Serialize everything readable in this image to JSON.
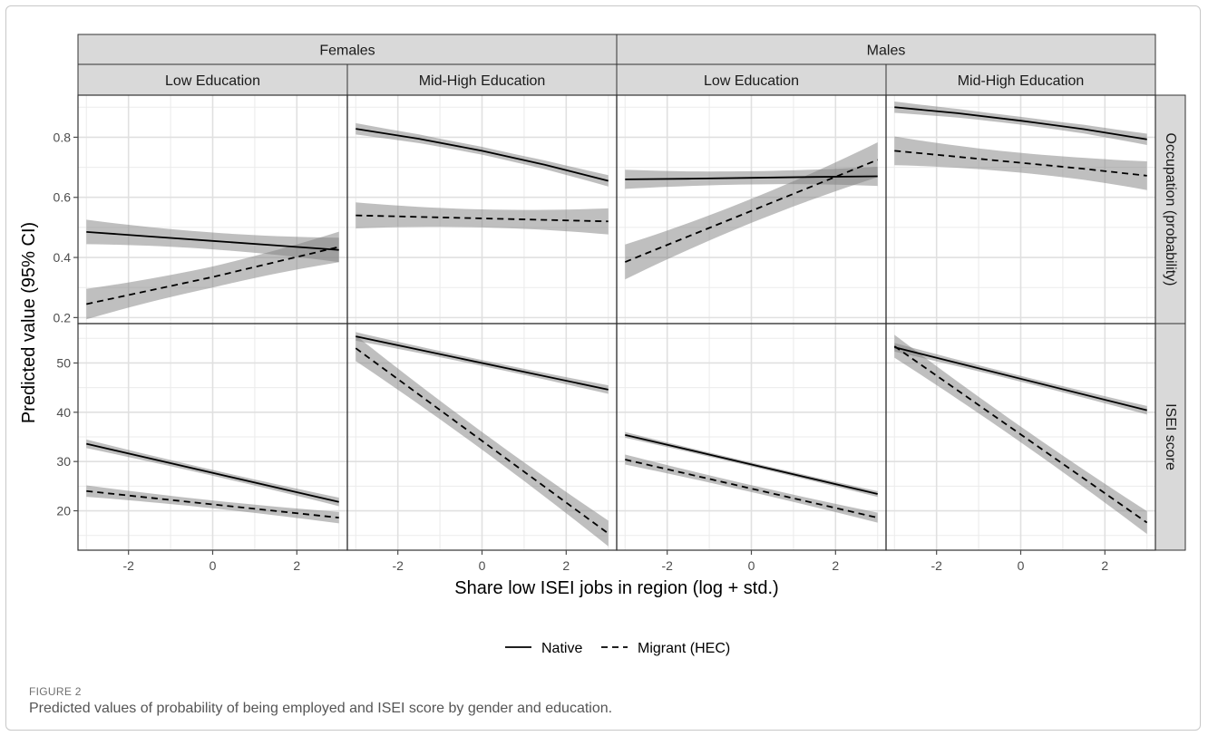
{
  "figure": {
    "label": "FIGURE 2",
    "caption": "Predicted values of probability of being employed and ISEI score by gender and education."
  },
  "chart_data": {
    "type": "line",
    "ylabel": "Predicted value (95% CI)",
    "xlabel": "Share low ISEI jobs in region (log + std.)",
    "xlim": [
      -3.2,
      3.2
    ],
    "x_ticks": [
      -2,
      0,
      2
    ],
    "x_tick_labels": [
      "-2",
      "0",
      "2"
    ],
    "legend": {
      "position": "bottom",
      "entries": [
        {
          "name": "Native",
          "linetype": "solid"
        },
        {
          "name": "Migrant (HEC)",
          "linetype": "dashed"
        }
      ]
    },
    "gender_strips": [
      "Females",
      "Males"
    ],
    "column_strips": [
      "Low Education",
      "Mid-High Education",
      "Low Education",
      "Mid-High Education"
    ],
    "rows": [
      {
        "strip": "Occupation (probability)",
        "ylim": [
          0.18,
          0.94
        ],
        "y_ticks": [
          0.2,
          0.4,
          0.6,
          0.8
        ],
        "y_tick_labels": [
          "0.2",
          "0.4",
          "0.6",
          "0.8"
        ]
      },
      {
        "strip": "ISEI score",
        "ylim": [
          12,
          58
        ],
        "y_ticks": [
          20,
          30,
          40,
          50
        ],
        "y_tick_labels": [
          "20",
          "30",
          "40",
          "50"
        ]
      }
    ],
    "grid": true,
    "panels": [
      {
        "row": 0,
        "col": 0,
        "series": [
          {
            "name": "Native",
            "x": [
              -3,
              -1.5,
              0,
              1.5,
              3
            ],
            "y": [
              0.485,
              0.47,
              0.455,
              0.44,
              0.425
            ],
            "ci": 0.028
          },
          {
            "name": "Migrant (HEC)",
            "x": [
              -3,
              -1.5,
              0,
              1.5,
              3
            ],
            "y": [
              0.245,
              0.29,
              0.335,
              0.385,
              0.435
            ],
            "ci": 0.035
          }
        ]
      },
      {
        "row": 0,
        "col": 1,
        "series": [
          {
            "name": "Native",
            "x": [
              -3,
              -1.5,
              0,
              1.5,
              3
            ],
            "y": [
              0.828,
              0.795,
              0.755,
              0.708,
              0.655
            ],
            "ci": 0.013
          },
          {
            "name": "Migrant (HEC)",
            "x": [
              -3,
              -1.5,
              0,
              1.5,
              3
            ],
            "y": [
              0.54,
              0.535,
              0.53,
              0.525,
              0.52
            ],
            "ci": 0.03
          }
        ]
      },
      {
        "row": 0,
        "col": 2,
        "series": [
          {
            "name": "Native",
            "x": [
              -3,
              -1.5,
              0,
              1.5,
              3
            ],
            "y": [
              0.66,
              0.662,
              0.665,
              0.668,
              0.67
            ],
            "ci": 0.022
          },
          {
            "name": "Migrant (HEC)",
            "x": [
              -3,
              -1.5,
              0,
              1.5,
              3
            ],
            "y": [
              0.385,
              0.47,
              0.555,
              0.64,
              0.725
            ],
            "ci": 0.04
          }
        ]
      },
      {
        "row": 0,
        "col": 3,
        "series": [
          {
            "name": "Native",
            "x": [
              -3,
              -1.5,
              0,
              1.5,
              3
            ],
            "y": [
              0.9,
              0.88,
              0.855,
              0.827,
              0.793
            ],
            "ci": 0.013
          },
          {
            "name": "Migrant (HEC)",
            "x": [
              -3,
              -1.5,
              0,
              1.5,
              3
            ],
            "y": [
              0.755,
              0.735,
              0.715,
              0.695,
              0.672
            ],
            "ci": 0.033
          }
        ]
      },
      {
        "row": 1,
        "col": 0,
        "series": [
          {
            "name": "Native",
            "x": [
              -3,
              3
            ],
            "y": [
              33.6,
              21.8
            ],
            "ci": 0.6
          },
          {
            "name": "Migrant (HEC)",
            "x": [
              -3,
              3
            ],
            "y": [
              24,
              18.6
            ],
            "ci": 0.8
          }
        ]
      },
      {
        "row": 1,
        "col": 1,
        "series": [
          {
            "name": "Native",
            "x": [
              -3,
              3
            ],
            "y": [
              55.4,
              44.6
            ],
            "ci": 0.6
          },
          {
            "name": "Migrant (HEC)",
            "x": [
              -3,
              3
            ],
            "y": [
              53,
              15.4
            ],
            "ci": 1.8
          }
        ]
      },
      {
        "row": 1,
        "col": 2,
        "series": [
          {
            "name": "Native",
            "x": [
              -3,
              3
            ],
            "y": [
              35.4,
              23.4
            ],
            "ci": 0.4
          },
          {
            "name": "Migrant (HEC)",
            "x": [
              -3,
              3
            ],
            "y": [
              30.4,
              18.6
            ],
            "ci": 0.7
          }
        ]
      },
      {
        "row": 1,
        "col": 3,
        "series": [
          {
            "name": "Native",
            "x": [
              -3,
              3
            ],
            "y": [
              53.2,
              40.4
            ],
            "ci": 0.6
          },
          {
            "name": "Migrant (HEC)",
            "x": [
              -3,
              3
            ],
            "y": [
              53.4,
              17.6
            ],
            "ci": 1.6
          }
        ]
      }
    ]
  }
}
